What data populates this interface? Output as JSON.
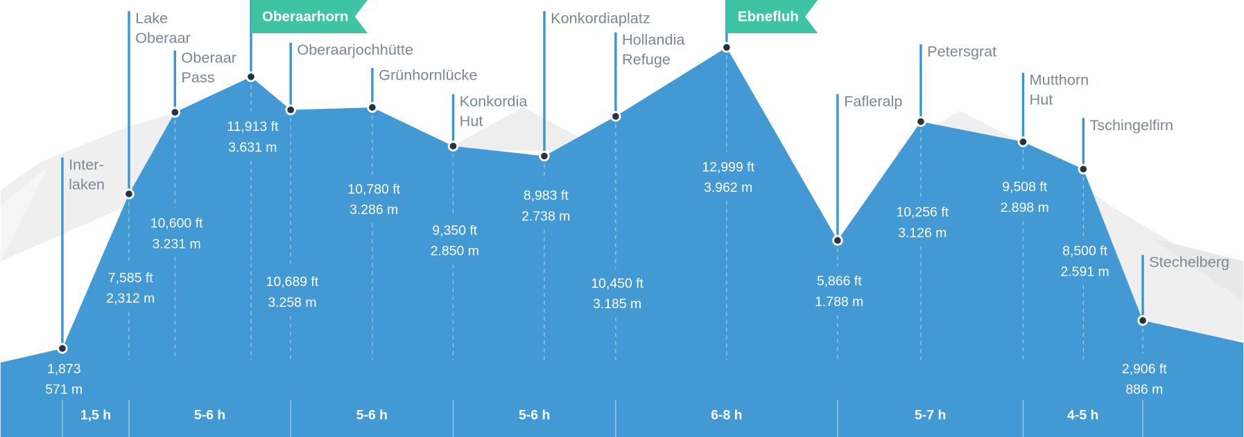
{
  "chart_data": {
    "type": "line",
    "categories": [
      [
        "Inter-",
        "laken"
      ],
      [
        "Lake",
        "Oberaar"
      ],
      [
        "Oberaar",
        "Pass"
      ],
      [
        "Oberaarhorn"
      ],
      [
        "Oberaarjochhütte"
      ],
      [
        "Grünhornlücke"
      ],
      [
        "Konkordia",
        "Hut"
      ],
      [
        "Konkordiaplatz"
      ],
      [
        "Hollandia",
        "Refuge"
      ],
      [
        "Ebnefluh"
      ],
      [
        "Fafleralp"
      ],
      [
        "Petersgrat"
      ],
      [
        "Mutthorn",
        "Hut"
      ],
      [
        "Tschingelfirn"
      ],
      [
        "Stechelberg"
      ]
    ],
    "values": [
      1873,
      7585,
      10600,
      11913,
      10689,
      10780,
      9350,
      8983,
      10450,
      12999,
      5866,
      10256,
      9508,
      8500,
      2906
    ],
    "value_labels": [
      "1,873",
      "7,585 ft",
      "10,600 ft",
      "11,913 ft",
      "10,689 ft",
      "10,780 ft",
      "9,350 ft",
      "8,983 ft",
      "10,450 ft",
      "12,999 ft",
      "5,866 ft",
      "10,256 ft",
      "9,508 ft",
      "8,500 ft",
      "2,906 ft"
    ],
    "meters": {
      "values": [
        571,
        2312,
        3231,
        3631,
        3258,
        3286,
        2850,
        2738,
        3185,
        3962,
        1788,
        3126,
        2898,
        2591,
        886
      ],
      "value_labels": [
        "571 m",
        "2,312 m",
        "3.231 m",
        "3.631 m",
        "3.258 m",
        "3.286 m",
        "2.850 m",
        "2.738 m",
        "3.185 m",
        "3.962 m",
        "1.788 m",
        "3.126 m",
        "2.898 m",
        "2.591 m",
        "886 m"
      ]
    },
    "stages": [
      "1,5 h",
      "5-6 h",
      "5-6 h",
      "5-6 h",
      "6-8 h",
      "5-7 h",
      "4-5 h"
    ],
    "color": "#4299d3",
    "ylim": [
      -1400,
      14750
    ]
  }
}
